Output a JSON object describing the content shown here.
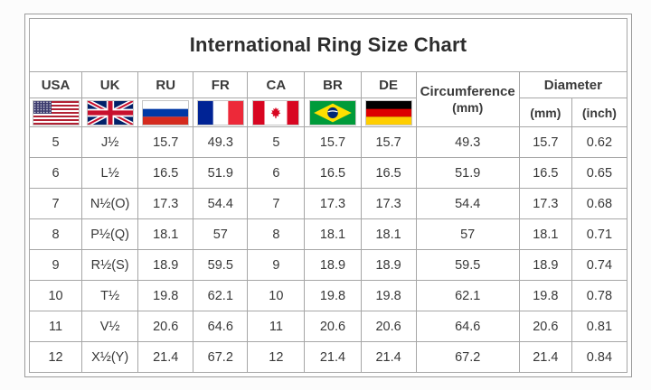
{
  "title": "International Ring Size Chart",
  "header": {
    "countries": [
      {
        "code": "USA",
        "icon": "usa-flag-icon"
      },
      {
        "code": "UK",
        "icon": "uk-flag-icon"
      },
      {
        "code": "RU",
        "icon": "russia-flag-icon"
      },
      {
        "code": "FR",
        "icon": "france-flag-icon"
      },
      {
        "code": "CA",
        "icon": "canada-flag-icon"
      },
      {
        "code": "BR",
        "icon": "brazil-flag-icon"
      },
      {
        "code": "DE",
        "icon": "germany-flag-icon"
      }
    ],
    "circumference": {
      "label": "Circumference",
      "unit": "(mm)"
    },
    "diameter": {
      "label": "Diameter",
      "units": [
        "(mm)",
        "(inch)"
      ]
    }
  },
  "chart_data": {
    "type": "table",
    "title": "International Ring Size Chart",
    "columns": [
      "USA",
      "UK",
      "RU",
      "FR",
      "CA",
      "BR",
      "DE",
      "Circumference (mm)",
      "Diameter (mm)",
      "Diameter (inch)"
    ],
    "rows": [
      [
        "5",
        "J½",
        "15.7",
        "49.3",
        "5",
        "15.7",
        "15.7",
        "49.3",
        "15.7",
        "0.62"
      ],
      [
        "6",
        "L½",
        "16.5",
        "51.9",
        "6",
        "16.5",
        "16.5",
        "51.9",
        "16.5",
        "0.65"
      ],
      [
        "7",
        "N½(O)",
        "17.3",
        "54.4",
        "7",
        "17.3",
        "17.3",
        "54.4",
        "17.3",
        "0.68"
      ],
      [
        "8",
        "P½(Q)",
        "18.1",
        "57",
        "8",
        "18.1",
        "18.1",
        "57",
        "18.1",
        "0.71"
      ],
      [
        "9",
        "R½(S)",
        "18.9",
        "59.5",
        "9",
        "18.9",
        "18.9",
        "59.5",
        "18.9",
        "0.74"
      ],
      [
        "10",
        "T½",
        "19.8",
        "62.1",
        "10",
        "19.8",
        "19.8",
        "62.1",
        "19.8",
        "0.78"
      ],
      [
        "11",
        "V½",
        "20.6",
        "64.6",
        "11",
        "20.6",
        "20.6",
        "64.6",
        "20.6",
        "0.81"
      ],
      [
        "12",
        "X½(Y)",
        "21.4",
        "67.2",
        "12",
        "21.4",
        "21.4",
        "67.2",
        "21.4",
        "0.84"
      ]
    ]
  },
  "colors": {
    "grid_border": "#a6a6a6",
    "outer_frame": "#9b9b9b",
    "text": "#3b3b3b",
    "page_background": "#fcfcfc"
  }
}
